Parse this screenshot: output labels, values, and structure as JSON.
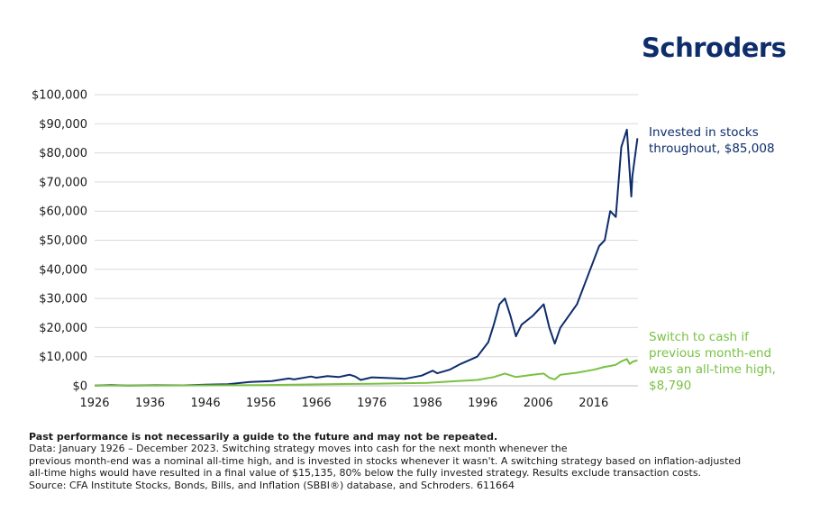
{
  "brand": {
    "name": "Schroders"
  },
  "annotations": {
    "stocks_line1": "Invested in stocks",
    "stocks_line2": "throughout, $85,008",
    "switch_line1": "Switch to cash if",
    "switch_line2": "previous month-end",
    "switch_line3": "was an all-time high,",
    "switch_line4": "$8,790"
  },
  "notes": {
    "disclaimer": "Past performance is not necessarily a guide to the future and may not be repeated.",
    "line1": "Data: January 1926 – December 2023. Switching strategy moves into cash for the next month whenever the",
    "line2": "previous month-end was a nominal all-time high, and is invested in stocks whenever it wasn't. A switching strategy based on inflation-adjusted",
    "line3": "all-time highs would have resulted in a final value of $15,135, 80% below the fully invested strategy. Results exclude transaction costs.",
    "line4": "Source: CFA Institute Stocks, Bonds, Bills, and Inflation (SBBI®) database, and Schroders. 611664"
  },
  "colors": {
    "stocks": "#0e2d6b",
    "switch": "#7ac143",
    "grid": "#d9d9d9"
  },
  "chart_data": {
    "type": "line",
    "title": "",
    "xlabel": "",
    "ylabel": "",
    "xlim": [
      1926,
      2024
    ],
    "ylim": [
      0,
      100000
    ],
    "grid": true,
    "legend": "none",
    "x_ticks": [
      "1926",
      "1936",
      "1946",
      "1956",
      "1966",
      "1976",
      "1986",
      "1996",
      "2006",
      "2016"
    ],
    "y_ticks": [
      "$0",
      "$10,000",
      "$20,000",
      "$30,000",
      "$40,000",
      "$50,000",
      "$60,000",
      "$70,000",
      "$80,000",
      "$90,000",
      "$100,000"
    ],
    "series": [
      {
        "name": "Invested in stocks throughout, $85,008",
        "color": "#0e2d6b",
        "x": [
          1926,
          1929,
          1932,
          1937,
          1942,
          1946,
          1950,
          1954,
          1956,
          1958,
          1961,
          1962,
          1965,
          1966,
          1968,
          1970,
          1972,
          1973,
          1974,
          1976,
          1980,
          1982,
          1985,
          1987,
          1987.8,
          1990,
          1992,
          1995,
          1997,
          1998,
          1999,
          2000,
          2001,
          2002,
          2003,
          2005,
          2007,
          2008,
          2009,
          2010,
          2013,
          2015,
          2017,
          2018,
          2019,
          2020,
          2021,
          2022,
          2022.8,
          2023,
          2023.9
        ],
        "y": [
          100,
          250,
          60,
          200,
          150,
          400,
          550,
          1300,
          1500,
          1600,
          2500,
          2200,
          3200,
          2800,
          3300,
          3000,
          3800,
          3200,
          2000,
          2900,
          2600,
          2400,
          3500,
          5200,
          4300,
          5500,
          7500,
          10000,
          15000,
          21000,
          28000,
          30000,
          24000,
          17000,
          21000,
          24000,
          28000,
          20000,
          14500,
          20000,
          28000,
          38000,
          48000,
          50000,
          60000,
          58000,
          82000,
          88000,
          65000,
          72000,
          85008
        ]
      },
      {
        "name": "Switch to cash if previous month-end was an all-time high, $8,790",
        "color": "#7ac143",
        "x": [
          1926,
          1936,
          1946,
          1956,
          1966,
          1976,
          1986,
          1990,
          1995,
          1998,
          2000,
          2002,
          2005,
          2007,
          2008,
          2009,
          2010,
          2013,
          2016,
          2018,
          2019,
          2020,
          2021,
          2022,
          2022.5,
          2023,
          2023.9
        ],
        "y": [
          50,
          80,
          150,
          250,
          500,
          700,
          1000,
          1500,
          2000,
          3000,
          4200,
          3000,
          3800,
          4200,
          2800,
          2200,
          3800,
          4500,
          5500,
          6500,
          6800,
          7200,
          8400,
          9200,
          7500,
          8200,
          8790
        ]
      }
    ]
  }
}
